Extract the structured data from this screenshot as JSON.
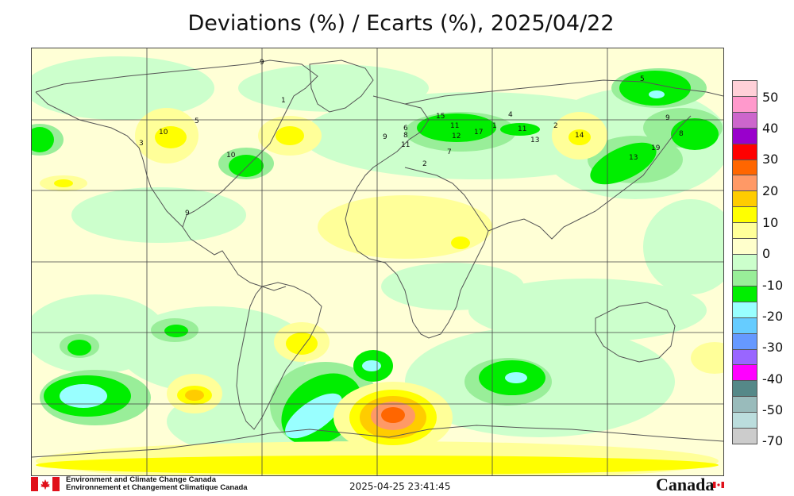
{
  "title": "Deviations (%) / Ecarts (%), 2025/04/22",
  "legend": {
    "labels": [
      "50",
      "40",
      "30",
      "20",
      "10",
      "0",
      "-10",
      "-20",
      "-30",
      "-40",
      "-50",
      "-70"
    ],
    "colors": [
      "#ffd0d8",
      "#ff99cc",
      "#cc66cc",
      "#9900cc",
      "#ff0000",
      "#ff6600",
      "#ff9966",
      "#ffcc00",
      "#ffff00",
      "#ffff99",
      "#ffffcc",
      "#ccffcc",
      "#99ee99",
      "#00ee00",
      "#99ffff",
      "#66ccff",
      "#6699ff",
      "#9966ff",
      "#ff00ff",
      "#558888",
      "#99bbbb",
      "#bbdddd",
      "#cccccc"
    ]
  },
  "footer": {
    "agency_en": "Environment and Climate Change Canada",
    "agency_fr": "Environnement et Changement Climatique Canada",
    "timestamp": "2025-04-25 23:41:45",
    "wordmark": "Canada"
  },
  "station_labels": [
    "9",
    "10",
    "5",
    "3",
    "10",
    "9",
    "15",
    "6",
    "9",
    "11",
    "12",
    "1",
    "8",
    "7",
    "2",
    "11",
    "17",
    "1",
    "11",
    "13",
    "4",
    "14",
    "2",
    "13",
    "19",
    "8",
    "9",
    "5"
  ]
}
